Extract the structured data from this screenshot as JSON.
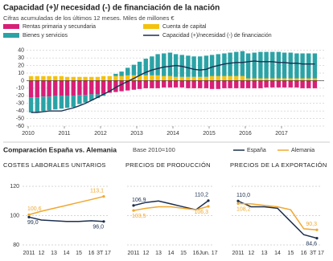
{
  "chart_data": [
    {
      "type": "bar",
      "title": "Capacidad (+)/ necesidad (-) de financiación de la nación",
      "subtitle": "Cifras acumuladas de los últimos 12 meses. Miles de millones €",
      "x": [
        2010.08,
        2010.25,
        2010.42,
        2010.58,
        2010.75,
        2010.92,
        2011.08,
        2011.25,
        2011.42,
        2011.58,
        2011.75,
        2011.92,
        2012.08,
        2012.25,
        2012.42,
        2012.58,
        2012.75,
        2012.92,
        2013.08,
        2013.25,
        2013.42,
        2013.58,
        2013.75,
        2013.92,
        2014.08,
        2014.25,
        2014.42,
        2014.58,
        2014.75,
        2014.92,
        2015.08,
        2015.25,
        2015.42,
        2015.58,
        2015.75,
        2015.92,
        2016.08,
        2016.25,
        2016.42,
        2016.58,
        2016.75,
        2016.92,
        2017.08,
        2017.25,
        2017.42,
        2017.58,
        2017.75,
        2017.92
      ],
      "xlim": [
        2010,
        2018
      ],
      "xticks": [
        2010,
        2011,
        2012,
        2013,
        2014,
        2015,
        2016,
        2017
      ],
      "ylim": [
        -60,
        45
      ],
      "yticks": [
        -60,
        -50,
        -40,
        -30,
        -20,
        -10,
        0,
        10,
        20,
        30,
        40
      ],
      "grid": true,
      "series": [
        {
          "name": "Rentas primaria y secundaria",
          "color": "#d81f77",
          "values": [
            -22,
            -22,
            -21,
            -21,
            -20,
            -20,
            -20,
            -20,
            -19,
            -19,
            -18,
            -18,
            -17,
            -16,
            -15,
            -14,
            -13,
            -12,
            -11,
            -10,
            -10,
            -10,
            -9,
            -9,
            -9,
            -9,
            -10,
            -10,
            -10,
            -10,
            -11,
            -11,
            -10,
            -10,
            -10,
            -10,
            -10,
            -10,
            -10,
            -9,
            -9,
            -9,
            -9,
            -9,
            -9,
            -10,
            -10,
            -10
          ]
        },
        {
          "name": "Bienes y servicios",
          "color": "#2ba3a6",
          "values": [
            -20,
            -20,
            -19,
            -18,
            -18,
            -17,
            -16,
            -15,
            -12,
            -10,
            -8,
            -5,
            -3,
            0,
            3,
            6,
            10,
            14,
            18,
            22,
            25,
            28,
            30,
            31,
            30,
            29,
            28,
            27,
            27,
            28,
            28,
            29,
            30,
            31,
            32,
            33,
            33,
            34,
            35,
            35,
            35,
            35,
            34,
            34,
            33,
            33,
            33,
            33
          ]
        },
        {
          "name": "Cuenta de capital",
          "color": "#f4c20d",
          "values": [
            6,
            6,
            6,
            6,
            6,
            6,
            5,
            5,
            5,
            5,
            5,
            5,
            6,
            6,
            6,
            6,
            7,
            7,
            7,
            7,
            7,
            7,
            6,
            6,
            5,
            5,
            5,
            5,
            5,
            5,
            6,
            6,
            6,
            6,
            6,
            6,
            3,
            3,
            3,
            3,
            3,
            3,
            3,
            3,
            3,
            3,
            3,
            3
          ]
        },
        {
          "name": "Capacidad (+)/necesidad (-) de financiación",
          "type": "line",
          "color": "#1c2f4f",
          "values": [
            -42,
            -42,
            -41,
            -40,
            -40,
            -40,
            -38,
            -36,
            -33,
            -30,
            -26,
            -22,
            -18,
            -14,
            -9,
            -5,
            -1,
            3,
            7,
            11,
            14,
            16,
            18,
            19,
            20,
            19,
            17,
            15,
            14,
            15,
            18,
            20,
            22,
            23,
            24,
            24,
            25,
            26,
            25,
            25,
            25,
            24,
            24,
            23,
            23,
            22,
            22,
            22
          ]
        }
      ]
    },
    {
      "type": "line",
      "title": "COSTES LABORALES UNITARIOS",
      "categories": [
        "2011",
        "12",
        "13",
        "14",
        "15",
        "16",
        "3T 17"
      ],
      "ylim": [
        80,
        120
      ],
      "yticks": [
        80,
        100,
        120
      ],
      "series": [
        {
          "name": "España",
          "color": "#1c2f4f",
          "values": [
            99.0,
            97,
            96.5,
            96,
            96,
            96.5,
            96.0
          ],
          "value_labels": [
            "99,0",
            null,
            null,
            null,
            null,
            null,
            "96,0"
          ]
        },
        {
          "name": "Alemania",
          "color": "#f0a830",
          "values": [
            100.6,
            103,
            105,
            107,
            109,
            111,
            113.1
          ],
          "value_labels": [
            "100,6",
            null,
            null,
            null,
            null,
            null,
            "113,1"
          ]
        }
      ]
    },
    {
      "type": "line",
      "title": "PRECIOS DE PRODUCCIÓN",
      "categories": [
        "2011",
        "12",
        "13",
        "14",
        "15",
        "16",
        "Jun. 17"
      ],
      "ylim": [
        80,
        120
      ],
      "series": [
        {
          "color": "#1c2f4f",
          "values": [
            106.9,
            109,
            110,
            108,
            106,
            104,
            110.2
          ],
          "value_labels": [
            "106,9",
            null,
            null,
            null,
            null,
            null,
            "110,2"
          ]
        },
        {
          "color": "#f0a830",
          "values": [
            103.5,
            105,
            106,
            106,
            105,
            104,
            106.3
          ],
          "value_labels": [
            "103,5",
            null,
            null,
            null,
            null,
            null,
            "106,3"
          ]
        }
      ]
    },
    {
      "type": "line",
      "title": "PRECIOS DE LA EXPORTACIÓN",
      "categories": [
        "2011",
        "12",
        "13",
        "14",
        "15",
        "16",
        "3T 17"
      ],
      "ylim": [
        80,
        120
      ],
      "series": [
        {
          "color": "#1c2f4f",
          "values": [
            110.0,
            106,
            106,
            105,
            96,
            87,
            84.6
          ],
          "value_labels": [
            "110,0",
            null,
            null,
            null,
            null,
            null,
            "84,6"
          ]
        },
        {
          "color": "#f0a830",
          "values": [
            108.2,
            108,
            107,
            106,
            104,
            91,
            90.3
          ],
          "value_labels": [
            "108,2",
            null,
            null,
            null,
            null,
            null,
            "90,3"
          ]
        }
      ]
    }
  ],
  "section_title": "Comparación España vs. Alemania",
  "section_note": "Base 2010=100"
}
